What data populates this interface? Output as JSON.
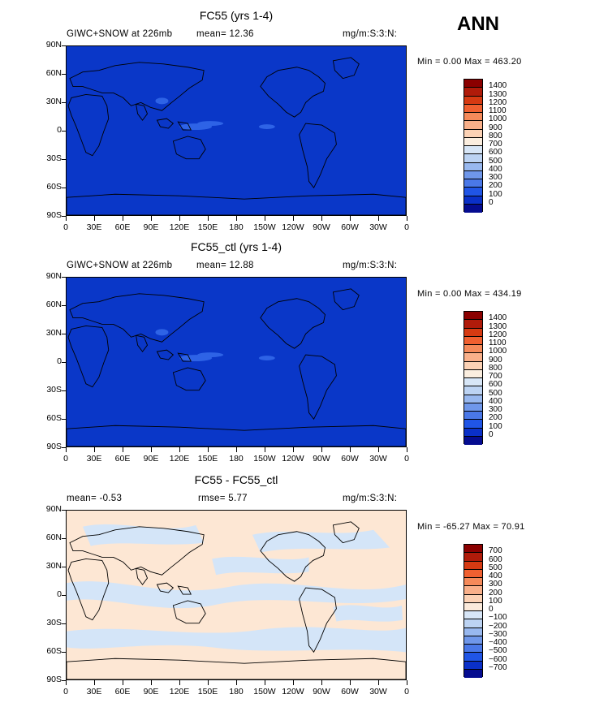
{
  "season": "ANN",
  "panels": [
    {
      "title": "FC55 (yrs 1-4)",
      "left_stat": "GIWC+SNOW at 226mb",
      "mid_stat": "mean=   12.36",
      "right_stat": "",
      "units": "mg/m:S:3:N:",
      "minmax": "Min =    0.00 Max = 463.20",
      "colorbar": {
        "colors": [
          "#8b0000",
          "#b01b0a",
          "#d63a12",
          "#f06030",
          "#f58a5a",
          "#f9b08a",
          "#fcd2b5",
          "#fbeedf",
          "#d7e6f7",
          "#bcd3f3",
          "#98b8ef",
          "#6f97ea",
          "#4a78e8",
          "#2055e6",
          "#0a30c8",
          "#050c90"
        ],
        "labels": [
          "1400",
          "1300",
          "1200",
          "1100",
          "1000",
          "900",
          "800",
          "700",
          "600",
          "500",
          "400",
          "300",
          "200",
          "100",
          "0"
        ]
      },
      "map": {
        "ocean": "#0a37c8"
      }
    },
    {
      "title": "FC55_ctl (yrs 1-4)",
      "left_stat": "GIWC+SNOW at 226mb",
      "mid_stat": "mean=   12.88",
      "right_stat": "",
      "units": "mg/m:S:3:N:",
      "minmax": "Min =    0.00 Max = 434.19",
      "colorbar": {
        "colors": [
          "#8b0000",
          "#b01b0a",
          "#d63a12",
          "#f06030",
          "#f58a5a",
          "#f9b08a",
          "#fcd2b5",
          "#fbeedf",
          "#d7e6f7",
          "#bcd3f3",
          "#98b8ef",
          "#6f97ea",
          "#4a78e8",
          "#2055e6",
          "#0a30c8",
          "#050c90"
        ],
        "labels": [
          "1400",
          "1300",
          "1200",
          "1100",
          "1000",
          "900",
          "800",
          "700",
          "600",
          "500",
          "400",
          "300",
          "200",
          "100",
          "0"
        ]
      },
      "map": {
        "ocean": "#0a37c8"
      }
    },
    {
      "title": "FC55 - FC55_ctl",
      "left_stat": "mean=  -0.53",
      "mid_stat": "rmse=    5.77",
      "right_stat": "",
      "units": "mg/m:S:3:N:",
      "minmax": "Min = -65.27 Max =  70.91",
      "colorbar": {
        "colors": [
          "#8b0000",
          "#b01b0a",
          "#d63a12",
          "#f06030",
          "#f58a5a",
          "#f9b08a",
          "#fcd2b5",
          "#fbeadb",
          "#d7e6f7",
          "#bcd3f3",
          "#98b8ef",
          "#6f97ea",
          "#4a78e8",
          "#2055e6",
          "#0a30c8",
          "#050c90"
        ],
        "labels": [
          "700",
          "600",
          "500",
          "400",
          "300",
          "200",
          "100",
          "0",
          "−100",
          "−200",
          "−300",
          "−400",
          "−500",
          "−600",
          "−700"
        ]
      },
      "map": {
        "ocean": "#fde7d4",
        "blob": "#d4e5f8"
      }
    }
  ],
  "lat_ticks": [
    "90N",
    "60N",
    "30N",
    "0",
    "30S",
    "60S",
    "90S"
  ],
  "lon_ticks": [
    "0",
    "30E",
    "60E",
    "90E",
    "120E",
    "150E",
    "180",
    "150W",
    "120W",
    "90W",
    "60W",
    "30W",
    "0"
  ]
}
